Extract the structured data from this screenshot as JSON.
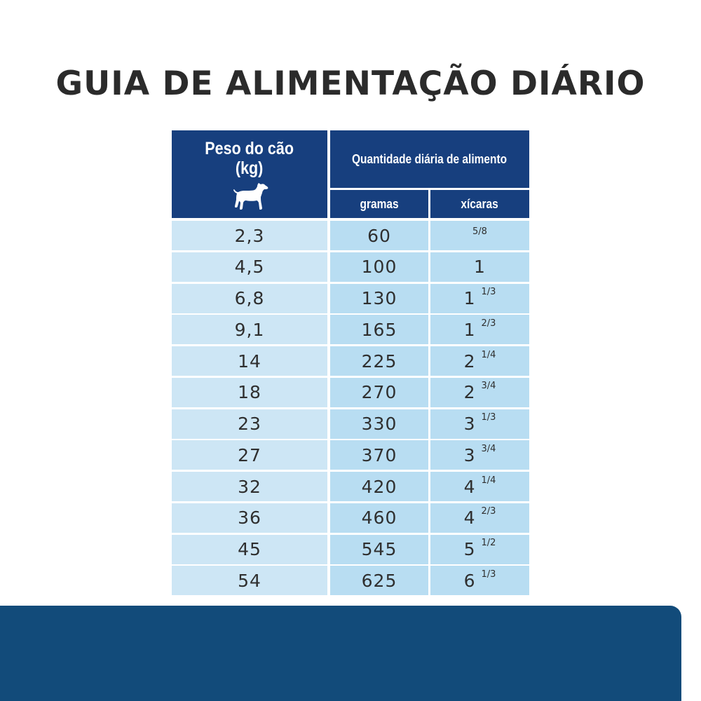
{
  "title": "GUIA DE ALIMENTAÇÃO DIÁRIO",
  "table": {
    "header_weight": "Peso do cão",
    "header_weight_unit": "(kg)",
    "header_quantity": "Quantidade diária de alimento",
    "col_grams": "gramas",
    "col_cups": "xícaras",
    "dog_icon": "dog-icon",
    "colors": {
      "header_bg": "#173f7e",
      "weight_cell_bg": "#cde6f5",
      "value_cell_bg": "#b8ddf2",
      "footer_band": "#124b7a"
    },
    "rows": [
      {
        "weight": "2,3",
        "grams": "60",
        "cups_whole": "",
        "cups_frac": "5/8"
      },
      {
        "weight": "4,5",
        "grams": "100",
        "cups_whole": "1",
        "cups_frac": ""
      },
      {
        "weight": "6,8",
        "grams": "130",
        "cups_whole": "1",
        "cups_frac": "1/3"
      },
      {
        "weight": "9,1",
        "grams": "165",
        "cups_whole": "1",
        "cups_frac": "2/3"
      },
      {
        "weight": "14",
        "grams": "225",
        "cups_whole": "2",
        "cups_frac": "1/4"
      },
      {
        "weight": "18",
        "grams": "270",
        "cups_whole": "2",
        "cups_frac": "3/4"
      },
      {
        "weight": "23",
        "grams": "330",
        "cups_whole": "3",
        "cups_frac": "1/3"
      },
      {
        "weight": "27",
        "grams": "370",
        "cups_whole": "3",
        "cups_frac": "3/4"
      },
      {
        "weight": "32",
        "grams": "420",
        "cups_whole": "4",
        "cups_frac": "1/4"
      },
      {
        "weight": "36",
        "grams": "460",
        "cups_whole": "4",
        "cups_frac": "2/3"
      },
      {
        "weight": "45",
        "grams": "545",
        "cups_whole": "5",
        "cups_frac": "1/2"
      },
      {
        "weight": "54",
        "grams": "625",
        "cups_whole": "6",
        "cups_frac": "1/3"
      }
    ]
  }
}
